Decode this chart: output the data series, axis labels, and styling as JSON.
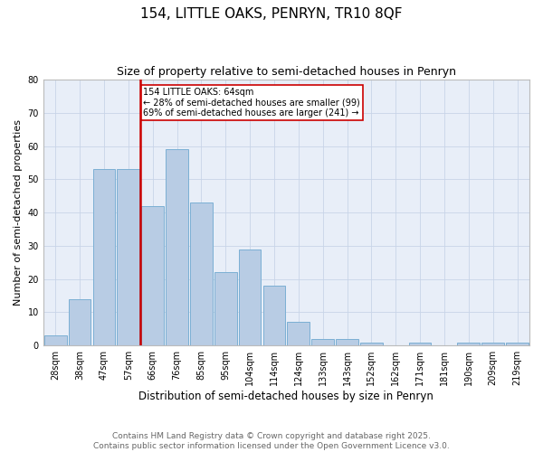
{
  "title1": "154, LITTLE OAKS, PENRYN, TR10 8QF",
  "title2": "Size of property relative to semi-detached houses in Penryn",
  "xlabel": "Distribution of semi-detached houses by size in Penryn",
  "ylabel": "Number of semi-detached properties",
  "bar_labels": [
    "28sqm",
    "38sqm",
    "47sqm",
    "57sqm",
    "66sqm",
    "76sqm",
    "85sqm",
    "95sqm",
    "104sqm",
    "114sqm",
    "124sqm",
    "133sqm",
    "143sqm",
    "152sqm",
    "162sqm",
    "171sqm",
    "181sqm",
    "190sqm",
    "209sqm",
    "219sqm"
  ],
  "bar_values": [
    3,
    14,
    53,
    53,
    42,
    59,
    43,
    22,
    29,
    18,
    7,
    2,
    2,
    1,
    0,
    1,
    0,
    1,
    1,
    1
  ],
  "bar_color": "#b8cce4",
  "bar_edgecolor": "#7bafd4",
  "grid_color": "#c8d4e8",
  "background_color": "#e8eef8",
  "redline_color": "#cc0000",
  "annotation_title": "154 LITTLE OAKS: 64sqm",
  "annotation_line1": "← 28% of semi-detached houses are smaller (99)",
  "annotation_line2": "69% of semi-detached houses are larger (241) →",
  "annotation_box_color": "#ffffff",
  "annotation_border_color": "#cc0000",
  "ylim": [
    0,
    80
  ],
  "yticks": [
    0,
    10,
    20,
    30,
    40,
    50,
    60,
    70,
    80
  ],
  "footnote1": "Contains HM Land Registry data © Crown copyright and database right 2025.",
  "footnote2": "Contains public sector information licensed under the Open Government Licence v3.0.",
  "title1_fontsize": 11,
  "title2_fontsize": 9,
  "xlabel_fontsize": 8.5,
  "ylabel_fontsize": 8,
  "tick_fontsize": 7,
  "annotation_fontsize": 7,
  "footnote_fontsize": 6.5,
  "redline_bar_index": 3.5
}
